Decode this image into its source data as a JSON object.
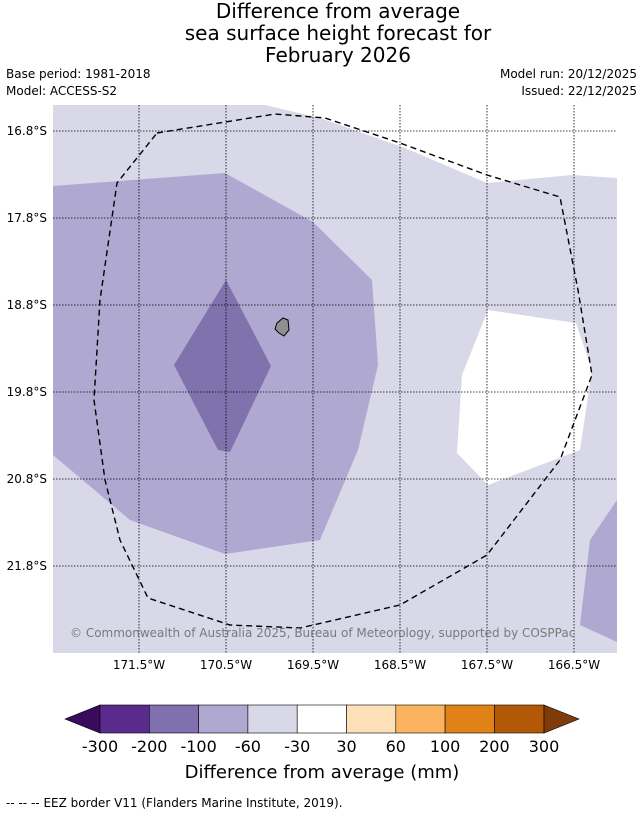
{
  "title": {
    "line1": "Difference from average",
    "line2": "sea surface height forecast for",
    "line3": "February 2026"
  },
  "meta": {
    "base_period": "Base period: 1981-2018",
    "model": "Model: ACCESS-S2",
    "model_run": "Model run: 20/12/2025",
    "issued": "Issued: 22/12/2025"
  },
  "map": {
    "latitudes": [
      "16.8°S",
      "17.8°S",
      "18.8°S",
      "19.8°S",
      "20.8°S",
      "21.8°S"
    ],
    "longitudes": [
      "171.5°W",
      "170.5°W",
      "169.5°W",
      "168.5°W",
      "167.5°W",
      "166.5°W"
    ],
    "copyright": "© Commonwealth of Australia 2025, Bureau of Meteorology, supported by COSPPac",
    "colors": {
      "ocean": "#ffffff",
      "light_purple": "#d8d8e9",
      "mid_purple": "#afa8d1",
      "dark_purple": "#7f72ad",
      "land": "#909090",
      "grid": "#000000",
      "eez": "#000000"
    }
  },
  "colorbar": {
    "labels": [
      "-300",
      "-200",
      "-100",
      "-60",
      "-30",
      "30",
      "60",
      "100",
      "200",
      "300"
    ],
    "colors": [
      "#3a0a5c",
      "#5a2a8c",
      "#8070b0",
      "#afa8d1",
      "#d8d8e9",
      "#ffffff",
      "#fde0b8",
      "#fbb35f",
      "#e08217",
      "#b35806",
      "#7f3b08"
    ],
    "title": "Difference from average (mm)"
  },
  "legend": {
    "eez_symbol": "--  --  --",
    "eez_text": "EEZ border V11 (Flanders Marine Institute, 2019)."
  }
}
